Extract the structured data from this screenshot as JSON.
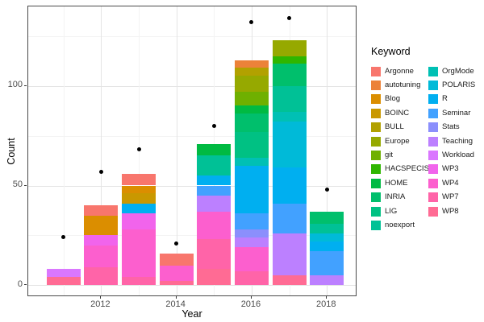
{
  "chart_data": {
    "type": "bar",
    "stacked": true,
    "title": "",
    "xlabel": "Year",
    "ylabel": "Count",
    "legend_title": "Keyword",
    "legend_position": "right",
    "x_ticks_major": [
      2012,
      2014,
      2016,
      2018
    ],
    "x_ticks_minor": [
      2011,
      2013,
      2015,
      2017
    ],
    "y_ticks_major": [
      0,
      50,
      100
    ],
    "y_ticks_minor": [
      25,
      75,
      125
    ],
    "ylim": [
      0,
      140
    ],
    "grid": true,
    "keywords": [
      {
        "name": "Argonne",
        "color": "#F8766D"
      },
      {
        "name": "autotuning",
        "color": "#EC8239"
      },
      {
        "name": "Blog",
        "color": "#DB8E00"
      },
      {
        "name": "BOINC",
        "color": "#C99800"
      },
      {
        "name": "BULL",
        "color": "#B2A100"
      },
      {
        "name": "Europe",
        "color": "#96A900"
      },
      {
        "name": "git",
        "color": "#6FB000"
      },
      {
        "name": "HACSPECIS",
        "color": "#2FB600"
      },
      {
        "name": "HOME",
        "color": "#00BA42"
      },
      {
        "name": "INRIA",
        "color": "#00BF6C"
      },
      {
        "name": "LIG",
        "color": "#00C183"
      },
      {
        "name": "noexport",
        "color": "#00C196"
      },
      {
        "name": "OrgMode",
        "color": "#00C0B4"
      },
      {
        "name": "POLARIS",
        "color": "#00BAD8"
      },
      {
        "name": "R",
        "color": "#00AFF0"
      },
      {
        "name": "Seminar",
        "color": "#42A1FF"
      },
      {
        "name": "Stats",
        "color": "#8B8FFC"
      },
      {
        "name": "Teaching",
        "color": "#BC80FF"
      },
      {
        "name": "Workload",
        "color": "#DA77FF"
      },
      {
        "name": "WP3",
        "color": "#F164EC"
      },
      {
        "name": "WP4",
        "color": "#FC5FCE"
      },
      {
        "name": "WP7",
        "color": "#FF64A8"
      },
      {
        "name": "WP8",
        "color": "#FF6B94"
      }
    ],
    "stack_order": "first keyword listed is the top segment of each bar",
    "bars": [
      {
        "year": 2011,
        "total": 8,
        "segments": [
          {
            "keyword": "Workload",
            "value": 4
          },
          {
            "keyword": "WP8",
            "value": 4
          }
        ]
      },
      {
        "year": 2012,
        "total": 40,
        "segments": [
          {
            "keyword": "Argonne",
            "value": 5
          },
          {
            "keyword": "Blog",
            "value": 10
          },
          {
            "keyword": "WP3",
            "value": 5
          },
          {
            "keyword": "WP4",
            "value": 11
          },
          {
            "keyword": "WP7",
            "value": 9
          }
        ]
      },
      {
        "year": 2013,
        "total": 56,
        "segments": [
          {
            "keyword": "Argonne",
            "value": 6
          },
          {
            "keyword": "Blog",
            "value": 4
          },
          {
            "keyword": "BOINC",
            "value": 5
          },
          {
            "keyword": "R",
            "value": 5
          },
          {
            "keyword": "WP3",
            "value": 8
          },
          {
            "keyword": "WP4",
            "value": 24
          },
          {
            "keyword": "WP7",
            "value": 4
          }
        ]
      },
      {
        "year": 2014,
        "total": 16,
        "segments": [
          {
            "keyword": "Argonne",
            "value": 6
          },
          {
            "keyword": "WP4",
            "value": 8
          },
          {
            "keyword": "WP8",
            "value": 2
          }
        ]
      },
      {
        "year": 2015,
        "total": 71,
        "segments": [
          {
            "keyword": "HOME",
            "value": 6
          },
          {
            "keyword": "noexport",
            "value": 10
          },
          {
            "keyword": "R",
            "value": 5
          },
          {
            "keyword": "Seminar",
            "value": 5
          },
          {
            "keyword": "Teaching",
            "value": 8
          },
          {
            "keyword": "WP4",
            "value": 14
          },
          {
            "keyword": "WP7",
            "value": 15
          },
          {
            "keyword": "WP8",
            "value": 8
          }
        ]
      },
      {
        "year": 2016,
        "total": 113,
        "segments": [
          {
            "keyword": "autotuning",
            "value": 4
          },
          {
            "keyword": "BULL",
            "value": 4
          },
          {
            "keyword": "Europe",
            "value": 8
          },
          {
            "keyword": "git",
            "value": 7
          },
          {
            "keyword": "HOME",
            "value": 4
          },
          {
            "keyword": "INRIA",
            "value": 9
          },
          {
            "keyword": "LIG",
            "value": 13
          },
          {
            "keyword": "OrgMode",
            "value": 4
          },
          {
            "keyword": "R",
            "value": 24
          },
          {
            "keyword": "Seminar",
            "value": 8
          },
          {
            "keyword": "Stats",
            "value": 4
          },
          {
            "keyword": "Teaching",
            "value": 5
          },
          {
            "keyword": "WP4",
            "value": 12
          },
          {
            "keyword": "WP7",
            "value": 7
          }
        ]
      },
      {
        "year": 2017,
        "total": 123,
        "segments": [
          {
            "keyword": "Europe",
            "value": 8
          },
          {
            "keyword": "HACSPECIS",
            "value": 4
          },
          {
            "keyword": "INRIA",
            "value": 11
          },
          {
            "keyword": "noexport",
            "value": 13
          },
          {
            "keyword": "OrgMode",
            "value": 5
          },
          {
            "keyword": "POLARIS",
            "value": 23
          },
          {
            "keyword": "R",
            "value": 18
          },
          {
            "keyword": "Seminar",
            "value": 15
          },
          {
            "keyword": "Teaching",
            "value": 21
          },
          {
            "keyword": "WP8",
            "value": 5
          }
        ]
      },
      {
        "year": 2018,
        "total": 37,
        "segments": [
          {
            "keyword": "INRIA",
            "value": 6
          },
          {
            "keyword": "noexport",
            "value": 5
          },
          {
            "keyword": "POLARIS",
            "value": 4
          },
          {
            "keyword": "R",
            "value": 5
          },
          {
            "keyword": "Seminar",
            "value": 12
          },
          {
            "keyword": "Teaching",
            "value": 5
          }
        ]
      }
    ],
    "points": [
      {
        "year": 2011,
        "count": 24
      },
      {
        "year": 2012,
        "count": 57
      },
      {
        "year": 2013,
        "count": 68
      },
      {
        "year": 2014,
        "count": 21
      },
      {
        "year": 2015,
        "count": 80
      },
      {
        "year": 2016,
        "count": 132
      },
      {
        "year": 2017,
        "count": 134
      },
      {
        "year": 2018,
        "count": 48
      }
    ]
  },
  "axes": {
    "x_title": "Year",
    "y_title": "Count"
  },
  "legend": {
    "title": "Keyword"
  }
}
